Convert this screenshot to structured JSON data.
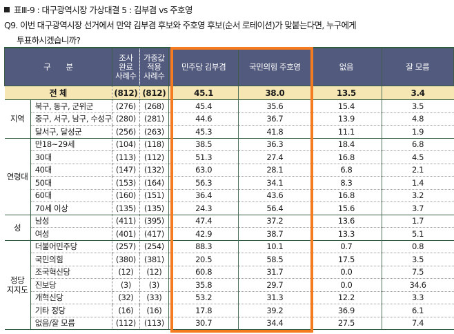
{
  "title": "표Ⅲ-9 : 대구광역시장 가상대결 5 : 김부겸 vs 주호영",
  "question_line1": "Q9. 이번 대구광역시장 선거에서 만약 김부겸 후보와 주호영 후보(순서 로테이션)가 맞붙는다면, 누구에게",
  "question_line2": "투표하시겠습니까?",
  "header": {
    "category": "구　　분",
    "n_raw": "조사\n완료\n사례수",
    "n_weighted": "가중값\n적용\n사례수",
    "cols": [
      "민주당 김부겸",
      "국민의힘 주호영",
      "없음",
      "잘 모름"
    ]
  },
  "total": {
    "label": "전 체",
    "n_raw": "(812)",
    "n_weighted": "(812)",
    "values": [
      "45.1",
      "38.0",
      "13.5",
      "3.4"
    ]
  },
  "groups": [
    {
      "label": "지역",
      "rows": [
        {
          "label": "북구, 동구, 군위군",
          "n_raw": "(276)",
          "n_weighted": "(268)",
          "values": [
            "45.4",
            "35.6",
            "15.4",
            "3.5"
          ]
        },
        {
          "label": "중구, 서구, 남구, 수성구",
          "n_raw": "(280)",
          "n_weighted": "(281)",
          "values": [
            "44.6",
            "36.7",
            "13.9",
            "4.8"
          ]
        },
        {
          "label": "달서구, 달성군",
          "n_raw": "(256)",
          "n_weighted": "(263)",
          "values": [
            "45.3",
            "41.8",
            "11.1",
            "1.9"
          ]
        }
      ]
    },
    {
      "label": "연령대",
      "rows": [
        {
          "label": "만18~29세",
          "n_raw": "(104)",
          "n_weighted": "(118)",
          "values": [
            "38.5",
            "36.3",
            "18.4",
            "6.8"
          ]
        },
        {
          "label": "30대",
          "n_raw": "(113)",
          "n_weighted": "(112)",
          "values": [
            "51.3",
            "27.4",
            "16.8",
            "4.5"
          ]
        },
        {
          "label": "40대",
          "n_raw": "(147)",
          "n_weighted": "(132)",
          "values": [
            "63.0",
            "28.1",
            "6.8",
            "2.1"
          ]
        },
        {
          "label": "50대",
          "n_raw": "(153)",
          "n_weighted": "(164)",
          "values": [
            "56.3",
            "34.1",
            "8.3",
            "1.4"
          ]
        },
        {
          "label": "60대",
          "n_raw": "(160)",
          "n_weighted": "(151)",
          "values": [
            "36.4",
            "43.6",
            "16.8",
            "3.2"
          ]
        },
        {
          "label": "70세 이상",
          "n_raw": "(135)",
          "n_weighted": "(135)",
          "values": [
            "24.3",
            "56.4",
            "15.6",
            "3.7"
          ]
        }
      ]
    },
    {
      "label": "성",
      "rows": [
        {
          "label": "남성",
          "n_raw": "(411)",
          "n_weighted": "(395)",
          "values": [
            "47.4",
            "37.2",
            "13.6",
            "1.7"
          ]
        },
        {
          "label": "여성",
          "n_raw": "(401)",
          "n_weighted": "(417)",
          "values": [
            "42.9",
            "38.7",
            "13.3",
            "5.1"
          ]
        }
      ]
    },
    {
      "label": "정당\n지지도",
      "rows": [
        {
          "label": "더불어민주당",
          "n_raw": "(257)",
          "n_weighted": "(254)",
          "values": [
            "88.3",
            "10.1",
            "0.7",
            "0.8"
          ]
        },
        {
          "label": "국민의힘",
          "n_raw": "(380)",
          "n_weighted": "(381)",
          "values": [
            "20.5",
            "58.5",
            "17.5",
            "3.5"
          ]
        },
        {
          "label": "조국혁신당",
          "n_raw": "(12)",
          "n_weighted": "(12)",
          "values": [
            "60.8",
            "31.7",
            "0.0",
            "7.5"
          ]
        },
        {
          "label": "진보당",
          "n_raw": "(3)",
          "n_weighted": "(3)",
          "values": [
            "35.8",
            "29.7",
            "0.0",
            "34.6"
          ]
        },
        {
          "label": "개혁신당",
          "n_raw": "(32)",
          "n_weighted": "(33)",
          "values": [
            "53.2",
            "31.3",
            "12.2",
            "3.3"
          ]
        },
        {
          "label": "기타 정당",
          "n_raw": "(16)",
          "n_weighted": "(16)",
          "values": [
            "17.8",
            "39.2",
            "36.9",
            "6.1"
          ]
        },
        {
          "label": "없음/잘 모름",
          "n_raw": "(112)",
          "n_weighted": "(113)",
          "values": [
            "30.7",
            "34.4",
            "27.5",
            "7.4"
          ]
        }
      ]
    }
  ],
  "colors": {
    "header_bg": "#525a7e",
    "total_bg": "#f6e6b4",
    "highlight_border": "#f47b20",
    "rule": "#2f5b3e"
  }
}
